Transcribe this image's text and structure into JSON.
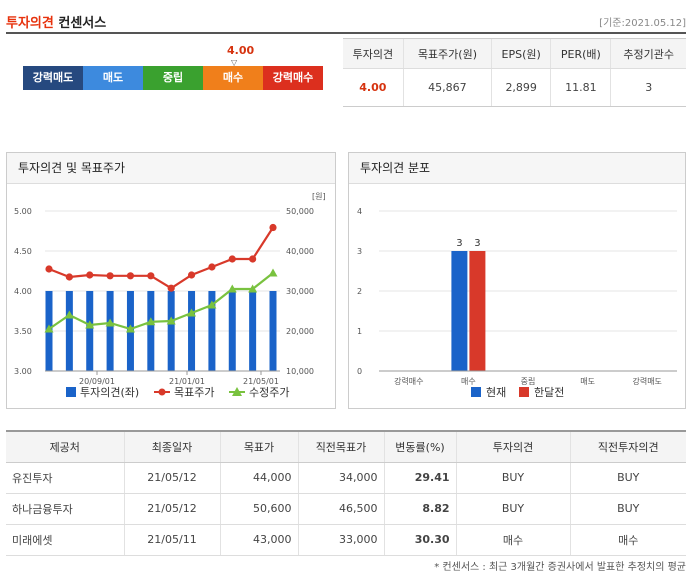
{
  "header": {
    "title_accent": "투자의견",
    "title_rest": " 컨센서스",
    "date": "[기준:2021.05.12]"
  },
  "gauge": {
    "value": "4.00",
    "marker": "▽",
    "segments": [
      {
        "label": "강력매도",
        "color": "#26497f"
      },
      {
        "label": "매도",
        "color": "#3d8ade"
      },
      {
        "label": "중립",
        "color": "#3aa12f"
      },
      {
        "label": "매수",
        "color": "#f07f1b"
      },
      {
        "label": "강력매수",
        "color": "#dc2f1e"
      }
    ]
  },
  "summary": {
    "headers": [
      "투자의견",
      "목표주가(원)",
      "EPS(원)",
      "PER(배)",
      "추정기관수"
    ],
    "values": [
      "4.00",
      "45,867",
      "2,899",
      "11.81",
      "3"
    ]
  },
  "panel_left": {
    "title": "투자의견 및 목표주가",
    "unit": "[원]",
    "legend": [
      "투자의견(좌)",
      "목표주가",
      "수정주가"
    ]
  },
  "panel_right": {
    "title": "투자의견 분포",
    "legend": [
      "현재",
      "한달전"
    ]
  },
  "chart_data": [
    {
      "type": "bar",
      "ylim": [
        3.0,
        5.0
      ],
      "y2lim": [
        10000,
        50000
      ],
      "yticks": [
        "5.00",
        "4.50",
        "4.00",
        "3.50",
        "3.00"
      ],
      "y2ticks": [
        "50,000",
        "40,000",
        "30,000",
        "20,000",
        "10,000"
      ],
      "xticks": [
        "20/09/01",
        "21/01/01",
        "21/05/01"
      ],
      "series": [
        {
          "name": "투자의견(좌)",
          "axis": "left",
          "color": "#1a63c9",
          "values": [
            4.0,
            4.0,
            4.0,
            4.0,
            4.0,
            4.0,
            4.0,
            4.0,
            4.0,
            4.0,
            4.0,
            4.0
          ]
        },
        {
          "name": "목표주가",
          "axis": "right",
          "color": "#d8392a",
          "values": [
            35500,
            33500,
            34000,
            33800,
            33800,
            33800,
            30700,
            34000,
            36000,
            38000,
            38000,
            45867
          ]
        },
        {
          "name": "수정주가",
          "axis": "right",
          "color": "#79c23f",
          "values": [
            20500,
            24000,
            21500,
            22000,
            20500,
            22300,
            22500,
            24500,
            26500,
            30500,
            30500,
            34500
          ]
        }
      ]
    },
    {
      "type": "bar",
      "categories": [
        "강력매수",
        "매수",
        "중립",
        "매도",
        "강력매도"
      ],
      "ylim": [
        0,
        4
      ],
      "yticks": [
        "4",
        "3",
        "2",
        "1",
        "0"
      ],
      "series": [
        {
          "name": "현재",
          "color": "#1a63c9",
          "values": [
            0,
            3,
            0,
            0,
            0
          ]
        },
        {
          "name": "한달전",
          "color": "#d8392a",
          "values": [
            0,
            3,
            0,
            0,
            0
          ]
        }
      ]
    }
  ],
  "brokers": {
    "headers": [
      "제공처",
      "최종일자",
      "목표가",
      "직전목표가",
      "변동률(%)",
      "투자의견",
      "직전투자의견"
    ],
    "rows": [
      [
        "유진투자",
        "21/05/12",
        "44,000",
        "34,000",
        "29.41",
        "BUY",
        "BUY"
      ],
      [
        "하나금융투자",
        "21/05/12",
        "50,600",
        "46,500",
        "8.82",
        "BUY",
        "BUY"
      ],
      [
        "미래에셋",
        "21/05/11",
        "43,000",
        "33,000",
        "30.30",
        "매수",
        "매수"
      ]
    ]
  },
  "footnote": "* 컨센서스 : 최근 3개월간 증권사에서 발표한 추정치의 평균"
}
